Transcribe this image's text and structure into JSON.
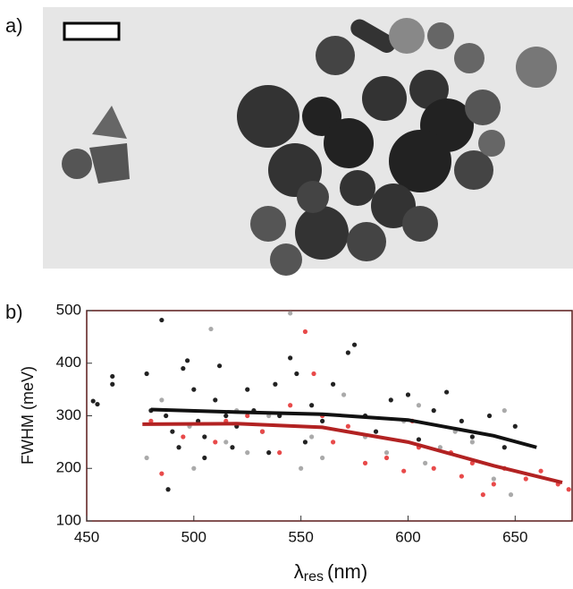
{
  "panels": {
    "a": {
      "label": "a)"
    },
    "b": {
      "label": "b)"
    }
  },
  "chart_data": {
    "type": "scatter",
    "y_label": "FWHM (meV)",
    "x_label": {
      "symbol": "λ",
      "subscript": "res",
      "unit": "(nm)"
    },
    "xlim": [
      450,
      677
    ],
    "ylim": [
      100,
      500
    ],
    "xticks": [
      450,
      500,
      550,
      600,
      650
    ],
    "yticks": [
      100,
      200,
      300,
      400,
      500
    ],
    "series": [
      {
        "color": "#222222",
        "x": [
          453,
          455,
          462,
          462,
          478,
          480,
          485,
          487,
          490,
          493,
          495,
          497,
          500,
          502,
          505,
          510,
          512,
          515,
          518,
          520,
          525,
          528,
          532,
          538,
          540,
          545,
          548,
          552,
          555,
          560,
          565,
          572,
          575,
          580,
          585,
          592,
          600,
          605,
          612,
          618,
          625,
          630,
          638,
          645,
          650,
          488,
          505,
          535
        ],
        "values": [
          328,
          322,
          375,
          360,
          380,
          310,
          482,
          300,
          270,
          240,
          390,
          405,
          350,
          290,
          260,
          330,
          395,
          300,
          240,
          280,
          350,
          310,
          270,
          360,
          300,
          410,
          380,
          250,
          320,
          290,
          360,
          420,
          435,
          300,
          270,
          330,
          340,
          255,
          310,
          345,
          290,
          260,
          300,
          240,
          280,
          160,
          220,
          230
        ]
      },
      {
        "color": "#aaaaaa",
        "x": [
          478,
          485,
          498,
          508,
          515,
          525,
          535,
          545,
          555,
          560,
          570,
          580,
          590,
          598,
          608,
          615,
          622,
          630,
          640,
          648,
          500,
          520,
          550,
          605,
          645
        ],
        "values": [
          220,
          330,
          280,
          465,
          250,
          230,
          300,
          495,
          260,
          220,
          340,
          260,
          230,
          290,
          210,
          240,
          270,
          250,
          180,
          150,
          200,
          310,
          200,
          320,
          310
        ]
      },
      {
        "color": "#e84a4a",
        "x": [
          480,
          485,
          495,
          510,
          515,
          525,
          532,
          540,
          552,
          556,
          560,
          565,
          572,
          580,
          590,
          598,
          605,
          612,
          620,
          625,
          630,
          635,
          640,
          645,
          655,
          662,
          670,
          675,
          602,
          545
        ],
        "values": [
          290,
          190,
          260,
          250,
          290,
          300,
          270,
          230,
          460,
          380,
          300,
          250,
          280,
          210,
          220,
          195,
          240,
          200,
          230,
          185,
          210,
          150,
          170,
          200,
          180,
          195,
          170,
          160,
          290,
          320
        ]
      },
      {
        "color": "#111111",
        "line": true,
        "x": [
          480,
          520,
          560,
          600,
          640,
          660
        ],
        "values": [
          312,
          307,
          303,
          292,
          262,
          240
        ]
      },
      {
        "color": "#b22222",
        "line": true,
        "x": [
          476,
          520,
          560,
          600,
          640,
          672
        ],
        "values": [
          284,
          285,
          278,
          250,
          205,
          173
        ]
      }
    ]
  }
}
